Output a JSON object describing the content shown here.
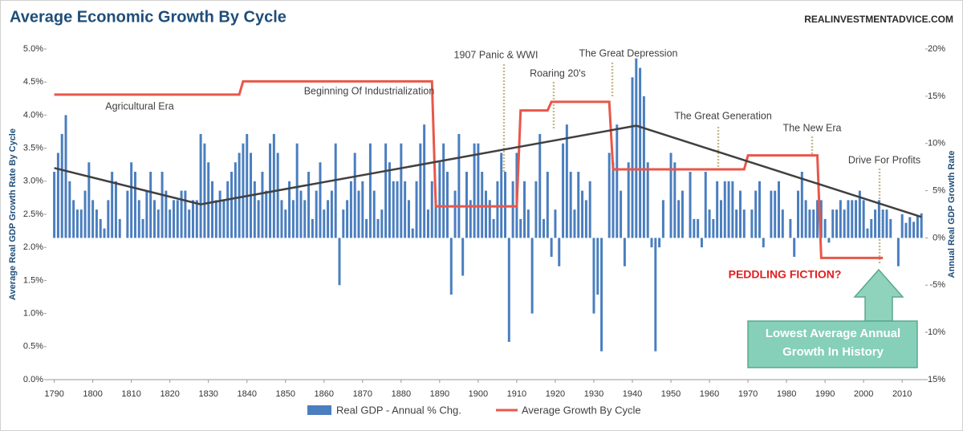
{
  "chart_data": {
    "type": "bar_line",
    "title": "Average Economic Growth By Cycle",
    "source": "REALINVESTMENTADVICE.COM",
    "ylabel": "Average Real GDP Growth Rate By Cycle",
    "y2label": "Annual Real GDP Growth Rate",
    "xlim": [
      1788,
      2016
    ],
    "xticks": [
      1790,
      1800,
      1810,
      1820,
      1830,
      1840,
      1850,
      1860,
      1870,
      1880,
      1890,
      1900,
      1910,
      1920,
      1930,
      1940,
      1950,
      1960,
      1970,
      1980,
      1990,
      2000,
      2010
    ],
    "ylim": [
      0,
      5
    ],
    "yticks": [
      {
        "value": 0,
        "label": "0.0%"
      },
      {
        "value": 0.5,
        "label": "0.5%"
      },
      {
        "value": 1,
        "label": "1.0%"
      },
      {
        "value": 1.5,
        "label": "1.5%"
      },
      {
        "value": 2,
        "label": "2.0%"
      },
      {
        "value": 2.5,
        "label": "2.5%"
      },
      {
        "value": 3,
        "label": "3.0%"
      },
      {
        "value": 3.5,
        "label": "3.5%"
      },
      {
        "value": 4,
        "label": "4.0%"
      },
      {
        "value": 4.5,
        "label": "4.5%"
      },
      {
        "value": 5,
        "label": "5.0%"
      }
    ],
    "y2lim": [
      -15,
      20
    ],
    "y2ticks": [
      {
        "value": -15,
        "label": "-15%"
      },
      {
        "value": -10,
        "label": "-10%"
      },
      {
        "value": -5,
        "label": "-5%"
      },
      {
        "value": 0,
        "label": "0%"
      },
      {
        "value": 5,
        "label": "5%"
      },
      {
        "value": 10,
        "label": "10%"
      },
      {
        "value": 15,
        "label": "15%"
      },
      {
        "value": 20,
        "label": "20%"
      }
    ],
    "x_start": 1790,
    "series": [
      {
        "name": "Real GDP - Annual % Chg.",
        "type": "bar",
        "axis": "y2",
        "color": "#4a7ebf",
        "values": [
          7,
          9,
          11,
          13,
          6,
          4,
          3,
          3,
          5,
          8,
          4,
          3,
          2,
          1,
          4,
          7,
          6,
          2,
          0,
          5,
          8,
          7,
          4,
          2,
          5,
          7,
          4,
          3,
          7,
          5,
          3,
          4,
          4,
          5,
          5,
          3,
          4,
          4,
          11,
          10,
          8,
          6,
          4,
          5,
          4,
          6,
          7,
          8,
          9,
          10,
          11,
          9,
          6,
          4,
          7,
          5,
          10,
          11,
          9,
          4,
          3,
          6,
          4,
          10,
          5,
          4,
          7,
          2,
          5,
          8,
          3,
          4,
          5,
          10,
          -5,
          3,
          4,
          6,
          9,
          5,
          6,
          2,
          10,
          5,
          2,
          3,
          10,
          8,
          6,
          6,
          10,
          6,
          4,
          1,
          6,
          10,
          12,
          3,
          6,
          4,
          8,
          10,
          7,
          -6,
          5,
          11,
          -4,
          7,
          4,
          10,
          10,
          7,
          5,
          4,
          2,
          6,
          9,
          7,
          -11,
          6,
          9,
          2,
          6,
          3,
          -8,
          6,
          11,
          2,
          7,
          -2,
          3,
          -3,
          10,
          12,
          7,
          3,
          7,
          5,
          4,
          6,
          -8,
          -6,
          -12,
          0,
          9,
          8,
          12,
          5,
          -3,
          8,
          17,
          19,
          18,
          15,
          8,
          -1,
          -12,
          -1,
          4,
          0,
          9,
          8,
          4,
          5,
          0,
          7,
          2,
          2,
          -1,
          7,
          3,
          2,
          6,
          4,
          6,
          6,
          6,
          3,
          5,
          3,
          0,
          3,
          5,
          6,
          -1,
          0,
          5,
          5,
          6,
          3,
          0,
          2,
          -2,
          5,
          7,
          4,
          3,
          3,
          4,
          4,
          2,
          -0.5,
          3,
          3,
          4,
          3,
          4,
          4,
          4,
          5,
          4,
          1,
          2,
          3,
          4,
          3,
          3,
          2,
          0,
          -3,
          2.5,
          1.6,
          2.2,
          1.7,
          2.4,
          2.6
        ]
      },
      {
        "name": "Average Growth By Cycle",
        "type": "line",
        "axis": "y",
        "color": "#e8574a",
        "values": [
          4.31,
          4.31,
          4.31,
          4.31,
          4.31,
          4.31,
          4.31,
          4.31,
          4.31,
          4.31,
          4.31,
          4.31,
          4.31,
          4.31,
          4.31,
          4.31,
          4.31,
          4.31,
          4.31,
          4.31,
          4.31,
          4.31,
          4.31,
          4.31,
          4.31,
          4.31,
          4.31,
          4.31,
          4.31,
          4.31,
          4.31,
          4.31,
          4.31,
          4.31,
          4.31,
          4.31,
          4.31,
          4.31,
          4.31,
          4.31,
          4.31,
          4.31,
          4.31,
          4.31,
          4.31,
          4.31,
          4.31,
          4.31,
          4.31,
          4.51,
          4.51,
          4.51,
          4.51,
          4.51,
          4.51,
          4.51,
          4.51,
          4.51,
          4.51,
          4.51,
          4.51,
          4.51,
          4.51,
          4.51,
          4.51,
          4.51,
          4.51,
          4.51,
          4.51,
          4.51,
          4.51,
          4.51,
          4.51,
          4.51,
          4.51,
          4.51,
          4.51,
          4.51,
          4.51,
          4.51,
          4.51,
          4.51,
          4.51,
          4.51,
          4.51,
          4.51,
          4.51,
          4.51,
          4.51,
          4.51,
          4.51,
          4.51,
          4.51,
          4.51,
          4.51,
          4.51,
          4.51,
          4.51,
          4.51,
          2.62,
          2.62,
          2.62,
          2.62,
          2.62,
          2.62,
          2.62,
          2.62,
          2.62,
          2.62,
          2.62,
          2.62,
          2.62,
          2.62,
          2.62,
          2.62,
          2.62,
          2.62,
          2.62,
          2.62,
          2.62,
          2.62,
          4.07,
          4.07,
          4.07,
          4.07,
          4.07,
          4.07,
          4.07,
          4.07,
          4.2,
          4.2,
          4.2,
          4.2,
          4.2,
          4.2,
          4.2,
          4.2,
          4.2,
          4.2,
          4.2,
          4.2,
          4.2,
          4.2,
          4.2,
          4.2,
          3.18,
          3.18,
          3.18,
          3.18,
          3.18,
          3.18,
          3.18,
          3.18,
          3.18,
          3.18,
          3.18,
          3.18,
          3.18,
          3.18,
          3.18,
          3.18,
          3.18,
          3.18,
          3.18,
          3.18,
          3.18,
          3.18,
          3.18,
          3.18,
          3.18,
          3.18,
          3.18,
          3.18,
          3.18,
          3.18,
          3.18,
          3.18,
          3.18,
          3.18,
          3.18,
          3.39,
          3.39,
          3.39,
          3.39,
          3.39,
          3.39,
          3.39,
          3.39,
          3.39,
          3.39,
          3.39,
          3.39,
          3.39,
          3.39,
          3.39,
          3.39,
          3.39,
          3.39,
          3.39,
          1.84,
          1.84,
          1.84,
          1.84,
          1.84,
          1.84,
          1.84,
          1.84,
          1.84,
          1.84,
          1.84,
          1.84,
          1.84,
          1.84,
          1.84,
          1.84,
          1.84
        ]
      },
      {
        "type": "trend",
        "axis": "y",
        "color": "#404040",
        "x": [
          1790,
          1828,
          1941,
          2015
        ],
        "values": [
          3.2,
          2.65,
          3.84,
          2.46
        ]
      }
    ],
    "annotations": [
      "Agricultural Era",
      "Beginning Of Industrialization",
      "1907 Panic & WWI",
      "Roaring 20's",
      "The Great Depression",
      "The Great Generation",
      "The New Era",
      "Drive For Profits",
      "PEDDLING FICTION?"
    ],
    "callout": [
      "Lowest Average Annual",
      "Growth In History"
    ]
  }
}
